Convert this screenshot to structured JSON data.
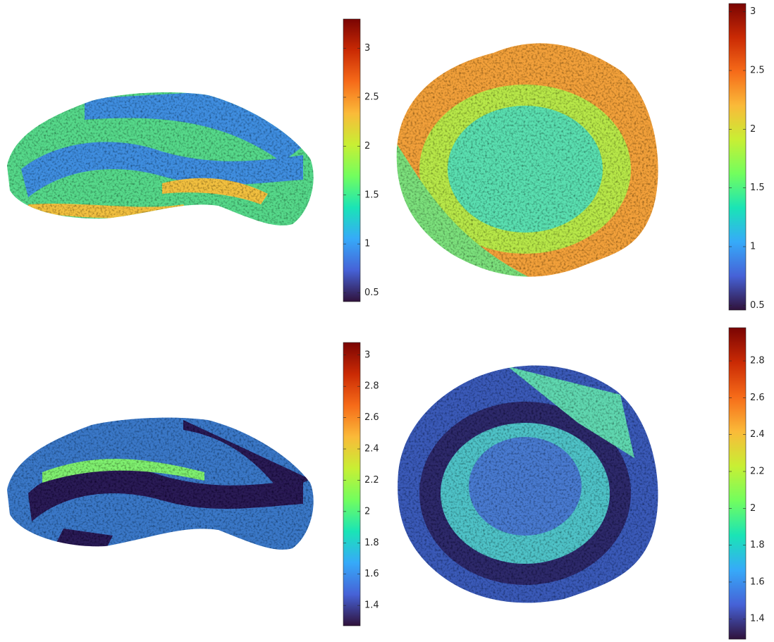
{
  "chart_data": [
    {
      "type": "surface",
      "colormap": "turbo",
      "clim": [
        0.41,
        3.3
      ],
      "cticks": [
        0.5,
        1,
        1.5,
        2,
        2.5,
        3
      ]
    },
    {
      "type": "surface",
      "colormap": "turbo",
      "clim": [
        0.46,
        3.07
      ],
      "cticks": [
        0.5,
        1,
        1.5,
        2,
        2.5,
        3
      ]
    },
    {
      "type": "surface",
      "colormap": "turbo",
      "clim": [
        1.27,
        3.08
      ],
      "cticks": [
        1.4,
        1.6,
        1.8,
        2,
        2.2,
        2.4,
        2.6,
        2.8,
        3
      ]
    },
    {
      "type": "surface",
      "colormap": "turbo",
      "clim": [
        1.29,
        2.98
      ],
      "cticks": [
        1.4,
        1.6,
        1.8,
        2,
        2.2,
        2.4,
        2.6,
        2.8
      ]
    }
  ]
}
